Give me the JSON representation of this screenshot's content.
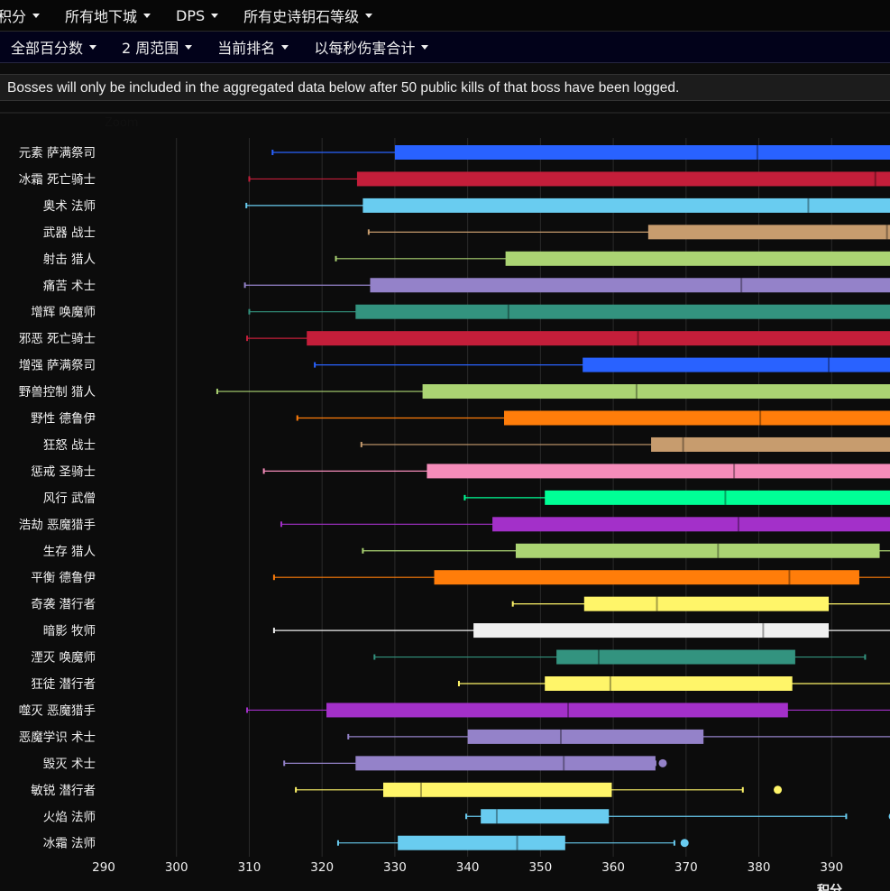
{
  "nav1": {
    "items": [
      "积分",
      "所有地下城",
      "DPS",
      "所有史诗钥石等级"
    ]
  },
  "nav2": {
    "items": [
      "全部百分数",
      "2 周范围",
      "当前排名",
      "以每秒伤害合计"
    ]
  },
  "notice": "Bosses will only be included in the aggregated data below after 50 public kills of that boss have been logged.",
  "zoom_label": "Zoom",
  "colors": {
    "background": "#0c0c0c",
    "grid": "#2b2b2b",
    "text": "#f0f0f0"
  },
  "chart_data": {
    "type": "boxplot",
    "orientation": "horizontal",
    "xlabel": "积分",
    "xlim": [
      290,
      400
    ],
    "xticks": [
      290,
      300,
      310,
      320,
      330,
      340,
      350,
      360,
      370,
      380,
      390
    ],
    "grid": true,
    "series": [
      {
        "name": "元素 萨满祭司",
        "min": 313.2,
        "q1": 330.0,
        "median": 379.8,
        "q3": 400,
        "max": 400,
        "color": "#2962ff"
      },
      {
        "name": "冰霜 死亡骑士",
        "min": 310.0,
        "q1": 324.8,
        "median": 396.0,
        "q3": 400,
        "max": 400,
        "color": "#c41e3a"
      },
      {
        "name": "奥术 法师",
        "min": 309.6,
        "q1": 325.6,
        "median": 386.8,
        "q3": 400,
        "max": 400,
        "color": "#69ccf0"
      },
      {
        "name": "武器 战士",
        "min": 326.4,
        "q1": 364.8,
        "median": 397.6,
        "q3": 400,
        "max": 400,
        "color": "#c79c6e"
      },
      {
        "name": "射击 猎人",
        "min": 321.9,
        "q1": 345.2,
        "median": 400,
        "q3": 400,
        "max": 400,
        "color": "#abd473"
      },
      {
        "name": "痛苦 术士",
        "min": 309.4,
        "q1": 326.6,
        "median": 377.6,
        "q3": 400,
        "max": 400,
        "color": "#9482c9"
      },
      {
        "name": "增辉 唤魔师",
        "min": 310.0,
        "q1": 324.6,
        "median": 345.6,
        "q3": 400,
        "max": 400,
        "color": "#33937f"
      },
      {
        "name": "邪恶 死亡骑士",
        "min": 309.7,
        "q1": 317.9,
        "median": 363.4,
        "q3": 400,
        "max": 400,
        "color": "#c41e3a"
      },
      {
        "name": "增强 萨满祭司",
        "min": 319.0,
        "q1": 355.8,
        "median": 389.6,
        "q3": 400,
        "max": 400,
        "color": "#2962ff"
      },
      {
        "name": "野兽控制 猎人",
        "min": 305.6,
        "q1": 333.8,
        "median": 363.2,
        "q3": 400,
        "max": 400,
        "color": "#abd473"
      },
      {
        "name": "野性 德鲁伊",
        "min": 316.6,
        "q1": 345.0,
        "median": 380.2,
        "q3": 400,
        "max": 400,
        "color": "#ff7d0a"
      },
      {
        "name": "狂怒 战士",
        "min": 325.4,
        "q1": 365.2,
        "median": 369.6,
        "q3": 400,
        "max": 400,
        "color": "#c79c6e"
      },
      {
        "name": "惩戒 圣骑士",
        "min": 312.0,
        "q1": 334.4,
        "median": 376.6,
        "q3": 400,
        "max": 400,
        "color": "#f58cba"
      },
      {
        "name": "风行 武僧",
        "min": 339.6,
        "q1": 350.6,
        "median": 375.4,
        "q3": 400,
        "max": 400,
        "color": "#00ff96"
      },
      {
        "name": "浩劫 恶魔猎手",
        "min": 314.4,
        "q1": 343.4,
        "median": 377.2,
        "q3": 400,
        "max": 400,
        "color": "#a330c9"
      },
      {
        "name": "生存 猎人",
        "min": 325.6,
        "q1": 346.6,
        "median": 374.4,
        "q3": 396.6,
        "max": 400,
        "color": "#abd473"
      },
      {
        "name": "平衡 德鲁伊",
        "min": 313.4,
        "q1": 335.4,
        "median": 384.2,
        "q3": 393.8,
        "max": 400,
        "color": "#ff7d0a"
      },
      {
        "name": "奇袭 潜行者",
        "min": 346.2,
        "q1": 356.0,
        "median": 366.0,
        "q3": 389.6,
        "max": 400,
        "color": "#fff569"
      },
      {
        "name": "暗影 牧师",
        "min": 313.4,
        "q1": 340.8,
        "median": 380.6,
        "q3": 389.6,
        "max": 400,
        "color": "#f0f0f0"
      },
      {
        "name": "湮灭 唤魔师",
        "min": 327.2,
        "q1": 352.2,
        "median": 358.0,
        "q3": 385.0,
        "max": 394.6,
        "color": "#33937f"
      },
      {
        "name": "狂徒 潜行者",
        "min": 338.8,
        "q1": 350.6,
        "median": 359.6,
        "q3": 384.6,
        "max": 400,
        "color": "#fff569"
      },
      {
        "name": "噬灭 恶魔猎手",
        "min": 309.7,
        "q1": 320.6,
        "median": 353.8,
        "q3": 384.0,
        "max": 400,
        "color": "#a330c9"
      },
      {
        "name": "恶魔学识 术士",
        "min": 323.6,
        "q1": 340.0,
        "median": 352.8,
        "q3": 372.4,
        "max": 400,
        "color": "#9482c9"
      },
      {
        "name": "毁灭 术士",
        "min": 314.8,
        "q1": 324.6,
        "median": 353.2,
        "q3": 365.8,
        "max": 365.8,
        "outliers": [
          366.8
        ],
        "color": "#9482c9"
      },
      {
        "name": "敏锐 潜行者",
        "min": 316.4,
        "q1": 328.4,
        "median": 333.6,
        "q3": 359.8,
        "max": 377.8,
        "outliers": [
          382.6
        ],
        "color": "#fff569"
      },
      {
        "name": "火焰 法师",
        "min": 339.8,
        "q1": 341.8,
        "median": 344.0,
        "q3": 359.4,
        "max": 392.0,
        "outliers": [
          398.4
        ],
        "color": "#69ccf0"
      },
      {
        "name": "冰霜 法师",
        "min": 322.2,
        "q1": 330.4,
        "median": 346.8,
        "q3": 353.4,
        "max": 368.4,
        "outliers": [
          369.8
        ],
        "color": "#69ccf0"
      }
    ]
  }
}
